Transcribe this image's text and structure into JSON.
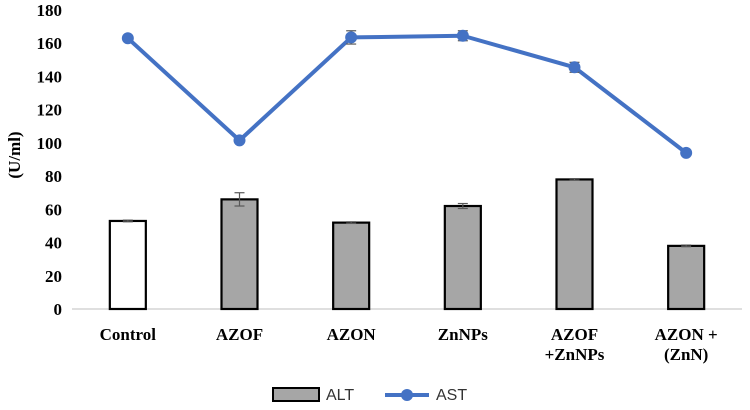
{
  "chart_data": {
    "type": "bar",
    "categories": [
      [
        "Control"
      ],
      [
        "AZOF"
      ],
      [
        "AZON"
      ],
      [
        "ZnNPs"
      ],
      [
        "AZOF",
        "+ZnNPs"
      ],
      [
        "AZON +",
        "(ZnN)"
      ]
    ],
    "ylabel": "(U/ml)",
    "xlabel": "",
    "ylim": [
      0,
      180
    ],
    "yticks": [
      0,
      20,
      40,
      60,
      80,
      100,
      120,
      140,
      160,
      180
    ],
    "series": [
      {
        "name": "ALT",
        "type": "bar",
        "values": [
          53,
          66,
          52,
          62,
          78,
          38
        ],
        "errors": [
          0.5,
          4,
          0.5,
          1.5,
          0.5,
          0.5
        ],
        "fills": [
          "#ffffff",
          "#a6a6a6",
          "#a6a6a6",
          "#a6a6a6",
          "#a6a6a6",
          "#a6a6a6"
        ]
      },
      {
        "name": "AST",
        "type": "line",
        "values": [
          163,
          101.5,
          163.5,
          164.5,
          145.5,
          94
        ],
        "errors": [
          1,
          1,
          4,
          3,
          3,
          1
        ]
      }
    ],
    "colors": {
      "bar_fill": "#a6a6a6",
      "bar_stroke": "#000000",
      "line": "#4472c4",
      "error": "#595959",
      "axis": "#bfbfbf"
    },
    "legend": {
      "position": "bottom",
      "entries": [
        "ALT",
        "AST"
      ]
    },
    "grid": false
  }
}
